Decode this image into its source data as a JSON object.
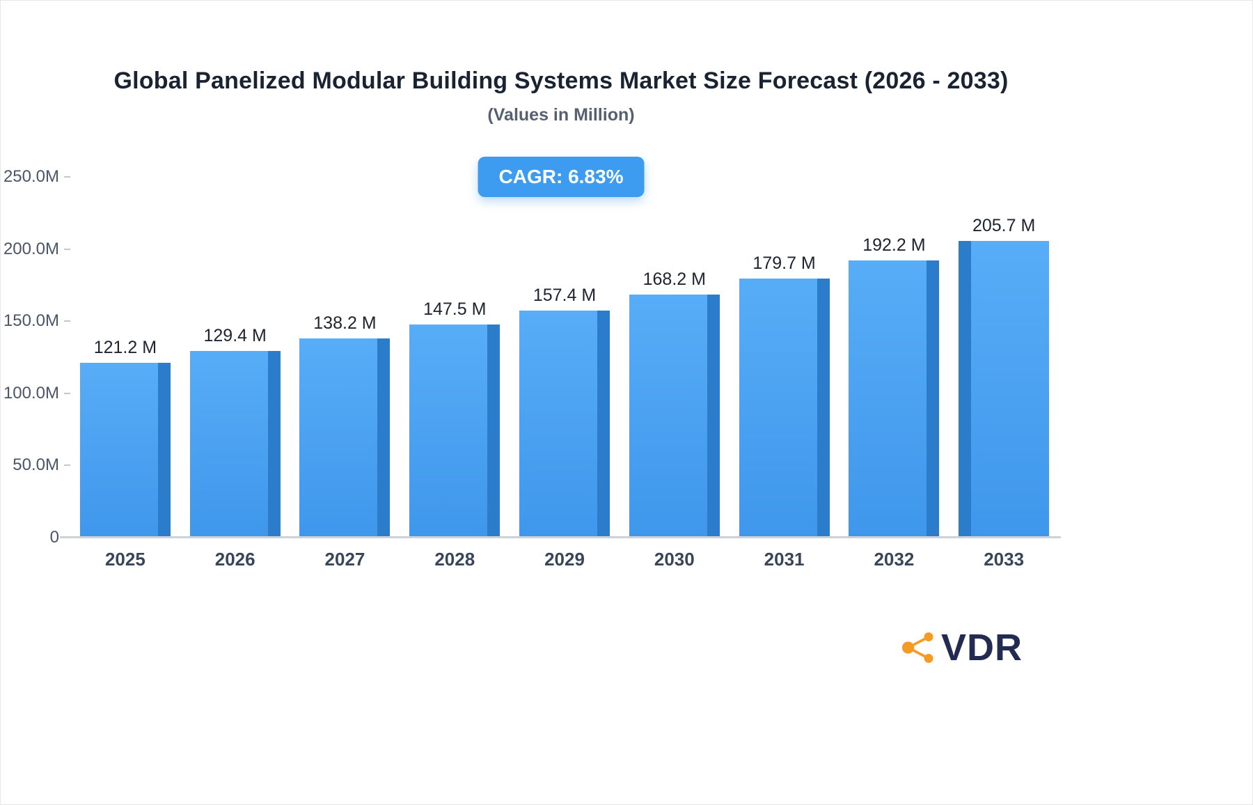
{
  "title": "Global Panelized Modular Building Systems Market Size Forecast (2026 - 2033)",
  "subtitle": "(Values in Million)",
  "cagr_badge": "CAGR: 6.83%",
  "chart_data": {
    "type": "bar",
    "title": "Global Panelized Modular Building Systems Market Size Forecast (2026 - 2033)",
    "subtitle": "(Values in Million)",
    "categories": [
      "2025",
      "2026",
      "2027",
      "2028",
      "2029",
      "2030",
      "2031",
      "2032",
      "2033"
    ],
    "values": [
      121.2,
      129.4,
      138.2,
      147.5,
      157.4,
      168.2,
      179.7,
      192.2,
      205.7
    ],
    "value_labels": [
      "121.2 M",
      "129.4 M",
      "138.2 M",
      "147.5 M",
      "157.4 M",
      "168.2 M",
      "179.7 M",
      "192.2 M",
      "205.7 M"
    ],
    "xlabel": "",
    "ylabel": "",
    "ylim": [
      0,
      250
    ],
    "y_ticks": [
      "250.0M",
      "200.0M",
      "150.0M",
      "100.0M",
      "50.0M",
      "0"
    ],
    "grid": false,
    "legend": "none",
    "bar_color": "#3F97EC",
    "bar_side_color": "#2B7CCB",
    "cagr": "6.83%"
  },
  "logo": {
    "text": "VDR",
    "icon_color": "#F59A23"
  }
}
